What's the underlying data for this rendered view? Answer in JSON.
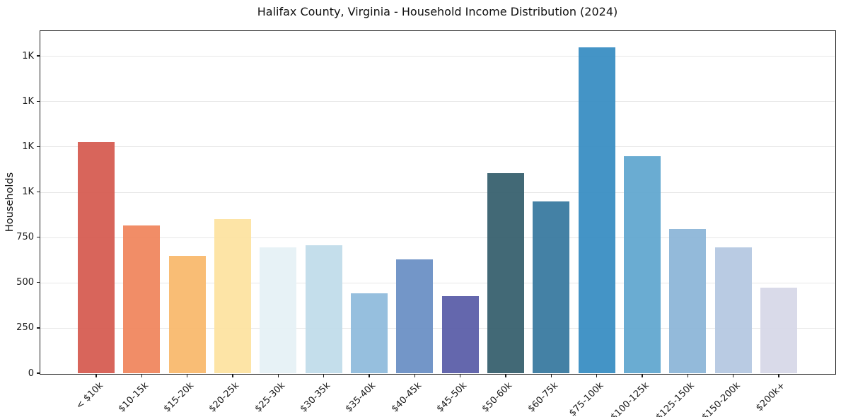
{
  "chart_data": {
    "type": "bar",
    "title": "Halifax County, Virginia - Household Income Distribution (2024)",
    "xlabel": "",
    "ylabel": "Households",
    "categories": [
      "< $10k",
      "$10-15k",
      "$15-20k",
      "$20-25k",
      "$25-30k",
      "$30-35k",
      "$35-40k",
      "$40-45k",
      "$45-50k",
      "$50-60k",
      "$60-75k",
      "$75-100k",
      "$100-125k",
      "$125-150k",
      "$150-200k",
      "$200k+"
    ],
    "values": [
      1273,
      816,
      646,
      850,
      693,
      704,
      441,
      629,
      425,
      1102,
      947,
      1797,
      1197,
      794,
      694,
      473
    ],
    "bar_colors": [
      "#d65d52",
      "#f0875f",
      "#f9b96e",
      "#fde3a1",
      "#e6f1f6",
      "#c1dcea",
      "#90bcdc",
      "#6b90c5",
      "#5c5fa9",
      "#38616f",
      "#3a7aa0",
      "#3a8ec3",
      "#62a8d0",
      "#8db6d8",
      "#b5c8e1",
      "#d7d8e8"
    ],
    "ylim": [
      0,
      1887
    ],
    "yticks": [
      {
        "value": 0,
        "label": "0"
      },
      {
        "value": 250,
        "label": "250"
      },
      {
        "value": 500,
        "label": "500"
      },
      {
        "value": 750,
        "label": "750"
      },
      {
        "value": 1000,
        "label": "1K"
      },
      {
        "value": 1250,
        "label": "1K"
      },
      {
        "value": 1500,
        "label": "1K"
      },
      {
        "value": 1750,
        "label": "1K"
      }
    ],
    "grid": "horizontal",
    "legend": "none"
  }
}
